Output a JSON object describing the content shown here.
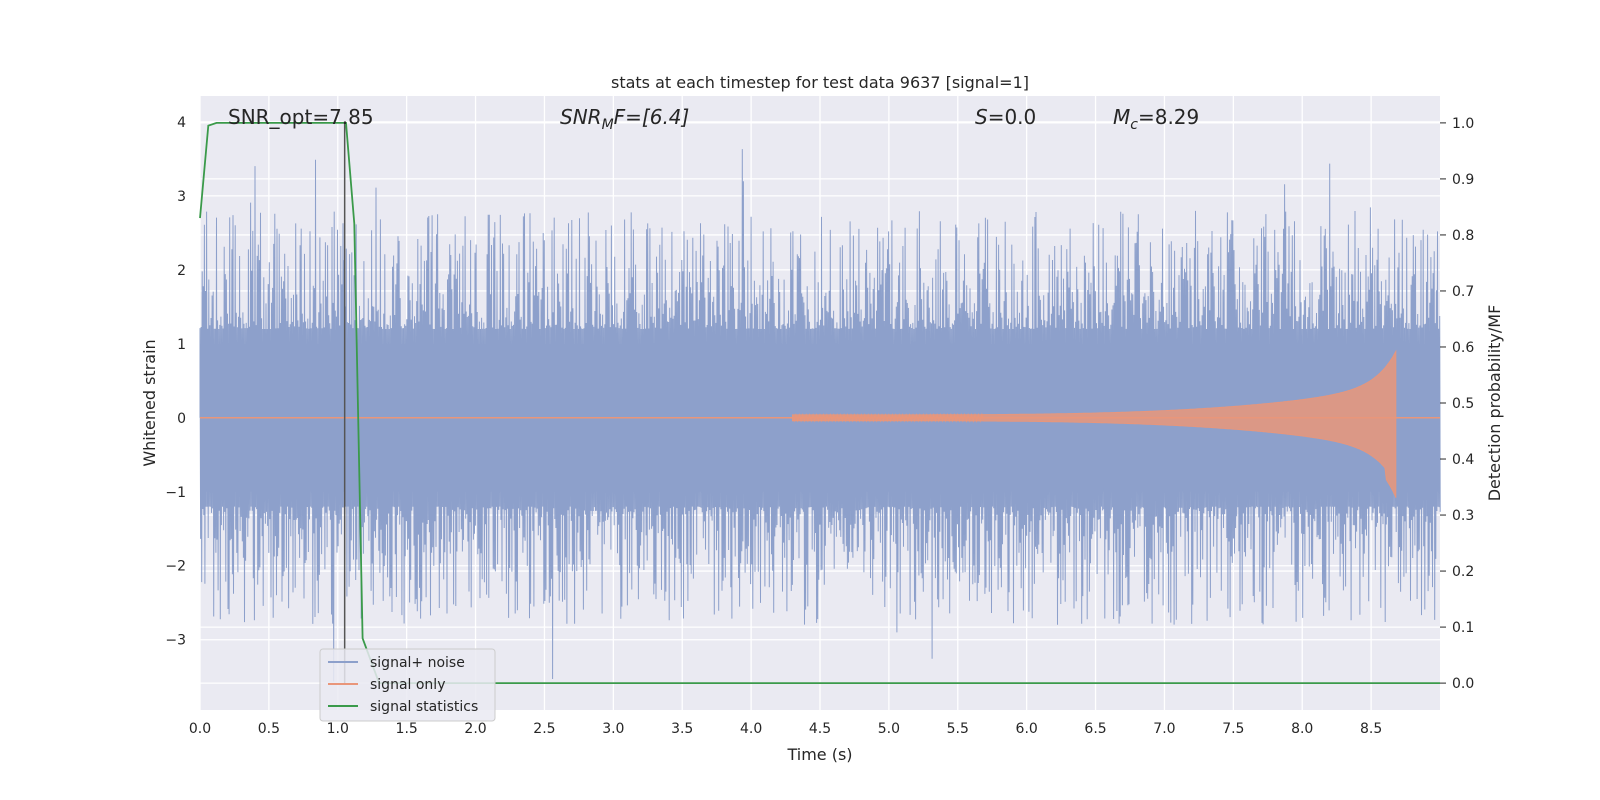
{
  "chart_data": {
    "type": "line",
    "title": "stats at each timestep for test data 9637 [signal=1]",
    "xlabel": "Time (s)",
    "ylabel": "Whitened strain",
    "y2label": "Detection probability/MF",
    "xlim": [
      0.0,
      9.0
    ],
    "ylim": [
      -3.95,
      4.35
    ],
    "y2lim": [
      -0.048,
      1.048
    ],
    "xticks": [
      "0.0",
      "0.5",
      "1.0",
      "1.5",
      "2.0",
      "2.5",
      "3.0",
      "3.5",
      "4.0",
      "4.5",
      "5.0",
      "5.5",
      "6.0",
      "6.5",
      "7.0",
      "7.5",
      "8.0",
      "8.5"
    ],
    "yticks": [
      "−3",
      "−2",
      "−1",
      "0",
      "1",
      "2",
      "3",
      "4"
    ],
    "y2ticks": [
      "0.0",
      "0.1",
      "0.2",
      "0.3",
      "0.4",
      "0.5",
      "0.6",
      "0.7",
      "0.8",
      "0.9",
      "1.0"
    ],
    "grid": true,
    "legend_position": "lower-left",
    "annotations": {
      "snr_opt": "SNR_opt=7.85",
      "snr_mf_main": "SNR",
      "snr_mf_sub": "M",
      "snr_mf_rest": "F=[6.4]",
      "s_main": "S",
      "s_rest": "=0.0",
      "mc_main": "M",
      "mc_sub": "c",
      "mc_rest": "=8.29"
    },
    "series": [
      {
        "name": "signal+ noise",
        "color": "#8da0cb",
        "axis": "left",
        "description_values": {
          "band_min": -1.0,
          "band_max": 1.0,
          "peak_max": 4.0,
          "peak_min": -3.6
        }
      },
      {
        "name": "signal only",
        "color": "#e9967a",
        "axis": "left",
        "chirp": {
          "start": 4.3,
          "end": 8.68,
          "peak_amplitude": 0.9,
          "peak_low": -1.1
        }
      },
      {
        "name": "signal statistics",
        "color": "#3a9a4a",
        "axis": "right",
        "x": [
          0.0,
          0.06,
          0.12,
          0.3,
          0.6,
          1.0,
          1.06,
          1.12,
          1.18,
          1.3,
          2.0,
          9.0
        ],
        "y": [
          0.83,
          0.995,
          1.0,
          1.0,
          1.0,
          1.0,
          1.0,
          0.82,
          0.08,
          0.0,
          0.0,
          0.0
        ]
      }
    ],
    "vline_x": 1.05
  }
}
